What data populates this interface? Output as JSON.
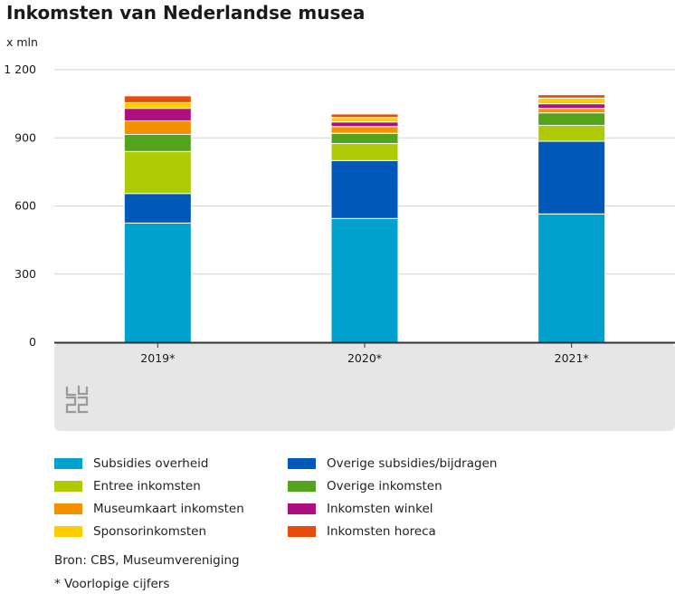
{
  "title": "Inkomsten van Nederlandse musea",
  "chart_data": {
    "type": "bar",
    "stacked": true,
    "title": "Inkomsten van Nederlandse musea",
    "ylabel": "x mln",
    "xlabel": "",
    "ylim": [
      0,
      1200
    ],
    "yticks": [
      0,
      300,
      600,
      900,
      1200
    ],
    "ytick_labels": [
      "0",
      "300",
      "600",
      "900",
      "1 200"
    ],
    "categories": [
      "2019*",
      "2020*",
      "2021*"
    ],
    "grid": true,
    "legend_position": "bottom",
    "series": [
      {
        "name": "Subsidies overheid",
        "color": "#00A1CD",
        "values": [
          525,
          545,
          565
        ]
      },
      {
        "name": "Overige subsidies/bijdragen",
        "color": "#0058B8",
        "values": [
          130,
          255,
          320
        ]
      },
      {
        "name": "Entree inkomsten",
        "color": "#AFCB05",
        "values": [
          185,
          75,
          70
        ]
      },
      {
        "name": "Overige inkomsten",
        "color": "#53A31D",
        "values": [
          75,
          45,
          55
        ]
      },
      {
        "name": "Museumkaart inkomsten",
        "color": "#F39200",
        "values": [
          60,
          30,
          20
        ]
      },
      {
        "name": "Inkomsten winkel",
        "color": "#AF0E80",
        "values": [
          55,
          20,
          20
        ]
      },
      {
        "name": "Sponsorinkomsten",
        "color": "#FFCC00",
        "values": [
          25,
          20,
          25
        ]
      },
      {
        "name": "Inkomsten horeca",
        "color": "#E94C0A",
        "values": [
          30,
          15,
          15
        ]
      }
    ]
  },
  "logo_text": "cbs",
  "source_note": "Bron: CBS, Museumvereniging",
  "footnote": "* Voorlopige cijfers"
}
